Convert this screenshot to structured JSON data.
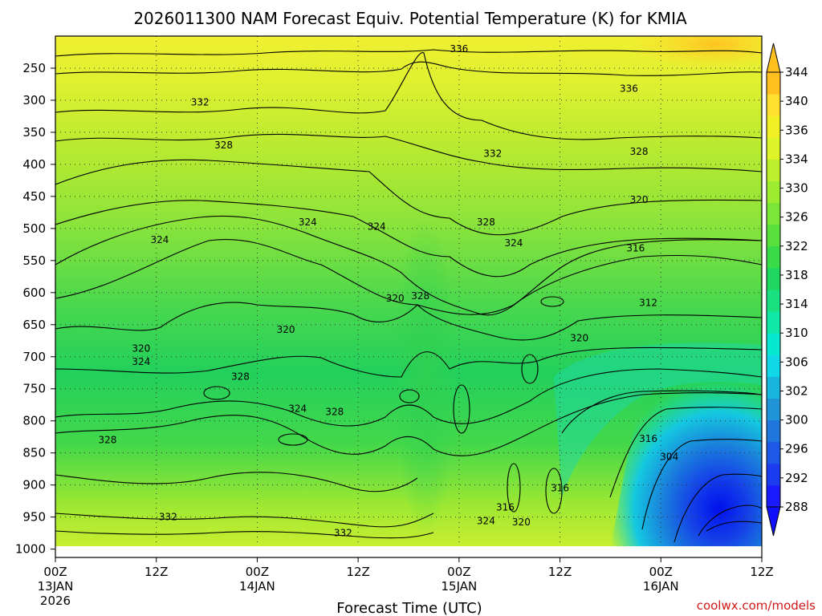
{
  "colors": {
    "ground": "#a0522d",
    "credit": "#d01818",
    "colorbar": [
      "#1a1aff",
      "#1c3cf0",
      "#1e58e6",
      "#1f76dc",
      "#1f95d8",
      "#18b5dc",
      "#10d8e6",
      "#08e8d0",
      "#10e8a8",
      "#1ae080",
      "#20d860",
      "#38dc48",
      "#58e03c",
      "#7ae636",
      "#9ced30",
      "#bcf02c",
      "#dcf428",
      "#f0f024",
      "#ffe030",
      "#ffc020"
    ]
  },
  "chart_data": {
    "type": "contour",
    "title": "2026011300 NAM Forecast Equiv. Potential Temperature (K) for KMIA",
    "xlabel": "Forecast Time (UTC)",
    "ylabel": "",
    "credit": "coolwx.com/models",
    "x_ticks": [
      {
        "hour": 0,
        "line1": "00Z",
        "line2": "13JAN",
        "line3": "2026"
      },
      {
        "hour": 12,
        "line1": "12Z",
        "line2": "",
        "line3": ""
      },
      {
        "hour": 24,
        "line1": "00Z",
        "line2": "14JAN",
        "line3": ""
      },
      {
        "hour": 36,
        "line1": "12Z",
        "line2": "",
        "line3": ""
      },
      {
        "hour": 48,
        "line1": "00Z",
        "line2": "15JAN",
        "line3": ""
      },
      {
        "hour": 60,
        "line1": "12Z",
        "line2": "",
        "line3": ""
      },
      {
        "hour": 72,
        "line1": "00Z",
        "line2": "16JAN",
        "line3": ""
      },
      {
        "hour": 84,
        "line1": "12Z",
        "line2": "",
        "line3": ""
      }
    ],
    "xlim_hours": [
      0,
      84
    ],
    "y_ticks_hpa": [
      250,
      300,
      350,
      400,
      450,
      500,
      550,
      600,
      650,
      700,
      750,
      800,
      850,
      900,
      950,
      1000
    ],
    "ylim_hpa": [
      200,
      1013
    ],
    "colorbar_ticks": [
      344,
      340,
      336,
      334,
      330,
      326,
      322,
      318,
      314,
      310,
      306,
      302,
      300,
      296,
      292,
      288
    ],
    "contour_interval_K": 2,
    "contour_labels": [
      {
        "text": "336",
        "hour": 48.0,
        "hpa": 220
      },
      {
        "text": "336",
        "hour": 68.2,
        "hpa": 282
      },
      {
        "text": "332",
        "hour": 17.2,
        "hpa": 303
      },
      {
        "text": "332",
        "hour": 52.0,
        "hpa": 383
      },
      {
        "text": "328",
        "hour": 20.0,
        "hpa": 370
      },
      {
        "text": "328",
        "hour": 69.4,
        "hpa": 380
      },
      {
        "text": "328",
        "hour": 51.2,
        "hpa": 490
      },
      {
        "text": "324",
        "hour": 30.0,
        "hpa": 490
      },
      {
        "text": "324",
        "hour": 38.2,
        "hpa": 497
      },
      {
        "text": "324",
        "hour": 12.4,
        "hpa": 518
      },
      {
        "text": "324",
        "hour": 54.5,
        "hpa": 523
      },
      {
        "text": "320",
        "hour": 69.4,
        "hpa": 455
      },
      {
        "text": "316",
        "hour": 69.0,
        "hpa": 531
      },
      {
        "text": "312",
        "hour": 70.5,
        "hpa": 616
      },
      {
        "text": "320",
        "hour": 27.4,
        "hpa": 658
      },
      {
        "text": "320",
        "hour": 40.4,
        "hpa": 609
      },
      {
        "text": "328",
        "hour": 43.4,
        "hpa": 605
      },
      {
        "text": "320",
        "hour": 62.3,
        "hpa": 671
      },
      {
        "text": "320",
        "hour": 10.2,
        "hpa": 687
      },
      {
        "text": "324",
        "hour": 10.2,
        "hpa": 708
      },
      {
        "text": "328",
        "hour": 22.0,
        "hpa": 731
      },
      {
        "text": "324",
        "hour": 28.8,
        "hpa": 781
      },
      {
        "text": "328",
        "hour": 33.2,
        "hpa": 786
      },
      {
        "text": "328",
        "hour": 6.2,
        "hpa": 830
      },
      {
        "text": "316",
        "hour": 70.5,
        "hpa": 828
      },
      {
        "text": "304",
        "hour": 73.0,
        "hpa": 856
      },
      {
        "text": "316",
        "hour": 60.0,
        "hpa": 905
      },
      {
        "text": "316",
        "hour": 53.5,
        "hpa": 935
      },
      {
        "text": "320",
        "hour": 55.4,
        "hpa": 958
      },
      {
        "text": "324",
        "hour": 51.2,
        "hpa": 956
      },
      {
        "text": "332",
        "hour": 13.4,
        "hpa": 950
      },
      {
        "text": "332",
        "hour": 34.2,
        "hpa": 975
      }
    ]
  }
}
